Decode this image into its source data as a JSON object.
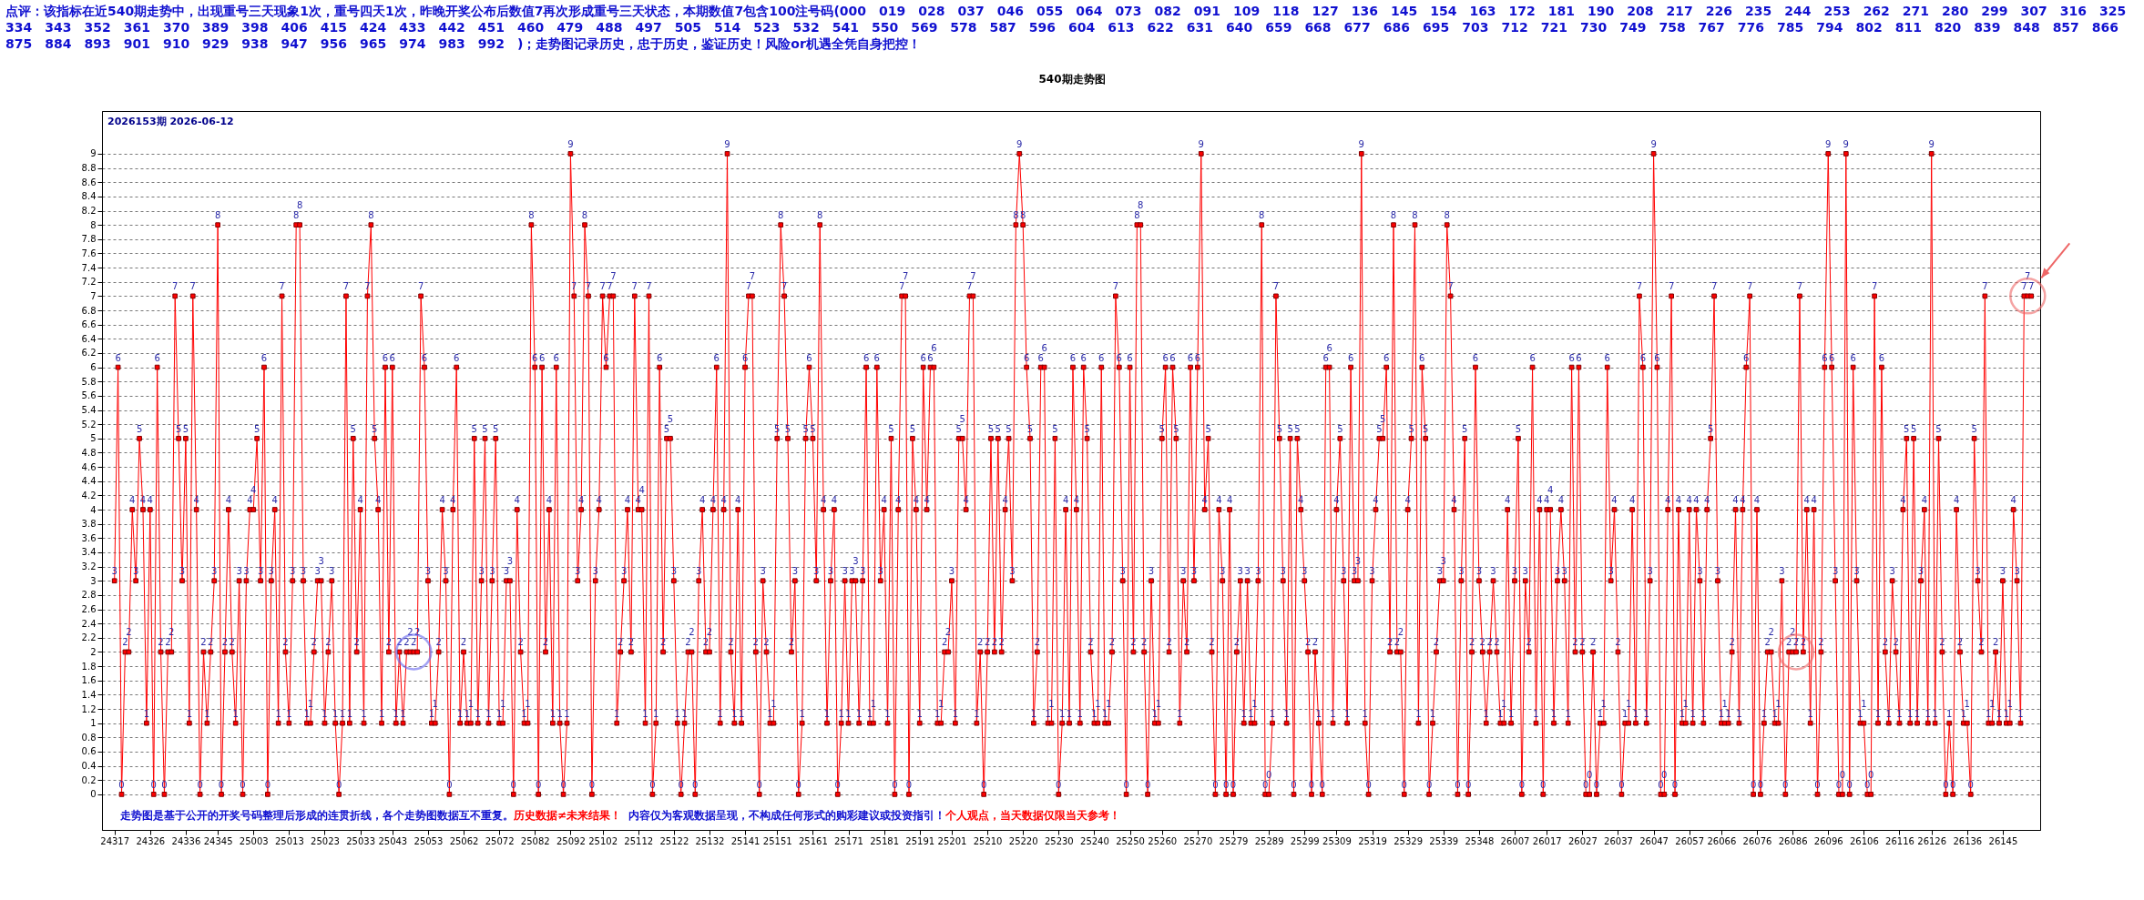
{
  "chart_data": {
    "type": "line",
    "title": "540期走势图",
    "subtitle": "2026153期  2026-06-12",
    "annotations": [
      "点评：该指标在近540期走势中，出现重号三天现象1次，重号四天1次，昨晚开奖公布后数值7再次形成重号三天状态，本期数值7包含100注号码(000　019　028　037　046　055　064　073　082　091　109　118　127　136　145　154　163　172　181　190　208　217　226　235　244　253　262　271　280　299　307　316　325　334　343　352　361　370　389　398　406　415　424　433　442　451　460　479　488　497　505　514　523　532　541　550　569　578　587　596　604　613　622　631　640　659　668　677　686　695　703　712　721　730　749　758　767　776　785　794　802　811　820　839　848　857　866　875　884　893　901　910　929　938　947　956　965　974　983　992　)；走势图记录历史，忠于历史，鉴证历史！风险or机遇全凭自身把控！",
      "走势图是基于公开的开奖号码整理后形成的连贯折线，各个走势图数据互不重复。",
      "历史数据≠未来结果！",
      "内容仅为客观数据呈现，不构成任何形式的购彩建议或投资指引！",
      "个人观点，当天数据仅限当天参考！"
    ],
    "categories": [
      "24317",
      null,
      null,
      null,
      null,
      null,
      null,
      null,
      null,
      null,
      "24326",
      null,
      null,
      null,
      null,
      null,
      null,
      null,
      null,
      null,
      "24336",
      null,
      null,
      null,
      null,
      null,
      null,
      null,
      null,
      "24345",
      null,
      null,
      null,
      null,
      null,
      null,
      null,
      null,
      null,
      "25003",
      null,
      null,
      null,
      null,
      null,
      null,
      null,
      null,
      null,
      "25013",
      null,
      null,
      null,
      null,
      null,
      null,
      null,
      null,
      null,
      "25023",
      null,
      null,
      null,
      null,
      null,
      null,
      null,
      null,
      null,
      "25033",
      null,
      null,
      null,
      null,
      null,
      null,
      null,
      null,
      "25043",
      null,
      null,
      null,
      null,
      null,
      null,
      null,
      null,
      null,
      "25053",
      null,
      null,
      null,
      null,
      null,
      null,
      null,
      null,
      null,
      "25062",
      null,
      null,
      null,
      null,
      null,
      null,
      null,
      null,
      null,
      "25072",
      null,
      null,
      null,
      null,
      null,
      null,
      null,
      null,
      null,
      "25082",
      null,
      null,
      null,
      null,
      null,
      null,
      null,
      null,
      null,
      "25092",
      null,
      null,
      null,
      null,
      null,
      null,
      null,
      null,
      "25102",
      null,
      null,
      null,
      null,
      null,
      null,
      null,
      null,
      null,
      "25112",
      null,
      null,
      null,
      null,
      null,
      null,
      null,
      null,
      null,
      "25122",
      null,
      null,
      null,
      null,
      null,
      null,
      null,
      null,
      null,
      "25132",
      null,
      null,
      null,
      null,
      null,
      null,
      null,
      null,
      null,
      "25141",
      null,
      null,
      null,
      null,
      null,
      null,
      null,
      null,
      "25151",
      null,
      null,
      null,
      null,
      null,
      null,
      null,
      null,
      null,
      "25161",
      null,
      null,
      null,
      null,
      null,
      null,
      null,
      null,
      null,
      "25171",
      null,
      null,
      null,
      null,
      null,
      null,
      null,
      null,
      null,
      "25181",
      null,
      null,
      null,
      null,
      null,
      null,
      null,
      null,
      null,
      "25191",
      null,
      null,
      null,
      null,
      null,
      null,
      null,
      null,
      "25201",
      null,
      null,
      null,
      null,
      null,
      null,
      null,
      null,
      null,
      "25210",
      null,
      null,
      null,
      null,
      null,
      null,
      null,
      null,
      null,
      "25220",
      null,
      null,
      null,
      null,
      null,
      null,
      null,
      null,
      null,
      "25230",
      null,
      null,
      null,
      null,
      null,
      null,
      null,
      null,
      null,
      "25240",
      null,
      null,
      null,
      null,
      null,
      null,
      null,
      null,
      null,
      "25250",
      null,
      null,
      null,
      null,
      null,
      null,
      null,
      null,
      "25260",
      null,
      null,
      null,
      null,
      null,
      null,
      null,
      null,
      null,
      "25270",
      null,
      null,
      null,
      null,
      null,
      null,
      null,
      null,
      null,
      "25279",
      null,
      null,
      null,
      null,
      null,
      null,
      null,
      null,
      null,
      "25289",
      null,
      null,
      null,
      null,
      null,
      null,
      null,
      null,
      null,
      "25299",
      null,
      null,
      null,
      null,
      null,
      null,
      null,
      null,
      "25309",
      null,
      null,
      null,
      null,
      null,
      null,
      null,
      null,
      null,
      "25319",
      null,
      null,
      null,
      null,
      null,
      null,
      null,
      null,
      null,
      "25329",
      null,
      null,
      null,
      null,
      null,
      null,
      null,
      null,
      null,
      "25339",
      null,
      null,
      null,
      null,
      null,
      null,
      null,
      null,
      null,
      "25348",
      null,
      null,
      null,
      null,
      null,
      null,
      null,
      null,
      null,
      "26007",
      null,
      null,
      null,
      null,
      null,
      null,
      null,
      null,
      "26017",
      null,
      null,
      null,
      null,
      null,
      null,
      null,
      null,
      null,
      "26027",
      null,
      null,
      null,
      null,
      null,
      null,
      null,
      null,
      null,
      "26037",
      null,
      null,
      null,
      null,
      null,
      null,
      null,
      null,
      null,
      "26047",
      null,
      null,
      null,
      null,
      null,
      null,
      null,
      null,
      null,
      "26057",
      null,
      null,
      null,
      null,
      null,
      null,
      null,
      null,
      "26066",
      null,
      null,
      null,
      null,
      null,
      null,
      null,
      null,
      null,
      "26076",
      null,
      null,
      null,
      null,
      null,
      null,
      null,
      null,
      null,
      "26086",
      null,
      null,
      null,
      null,
      null,
      null,
      null,
      null,
      null,
      "26096",
      null,
      null,
      null,
      null,
      null,
      null,
      null,
      null,
      null,
      "26106",
      null,
      null,
      null,
      null,
      null,
      null,
      null,
      null,
      null,
      "26116",
      null,
      null,
      null,
      null,
      null,
      null,
      null,
      null,
      "26126",
      null,
      null,
      null,
      null,
      null,
      null,
      null,
      null,
      null,
      "26136",
      null,
      null,
      null,
      null,
      null,
      null,
      null,
      null,
      null,
      "26145",
      null,
      null,
      null,
      null,
      null,
      null,
      null,
      null
    ],
    "values": [
      3,
      6,
      0,
      2,
      2,
      4,
      3,
      5,
      4,
      1,
      4,
      0,
      6,
      2,
      0,
      2,
      2,
      7,
      5,
      3,
      5,
      1,
      7,
      4,
      0,
      2,
      1,
      2,
      3,
      8,
      0,
      2,
      4,
      2,
      1,
      3,
      0,
      3,
      4,
      4,
      5,
      3,
      6,
      0,
      3,
      4,
      1,
      7,
      2,
      1,
      3,
      8,
      8,
      3,
      1,
      1,
      2,
      3,
      3,
      1,
      2,
      3,
      1,
      0,
      1,
      7,
      1,
      5,
      2,
      4,
      1,
      7,
      8,
      5,
      4,
      1,
      6,
      2,
      6,
      1,
      2,
      1,
      2,
      2,
      2,
      2,
      7,
      6,
      3,
      1,
      1,
      2,
      4,
      3,
      0,
      4,
      6,
      1,
      2,
      1,
      1,
      5,
      1,
      3,
      5,
      1,
      3,
      5,
      1,
      1,
      3,
      3,
      0,
      4,
      2,
      1,
      1,
      8,
      6,
      0,
      6,
      2,
      4,
      1,
      6,
      1,
      0,
      1,
      9,
      7,
      3,
      4,
      8,
      7,
      0,
      3,
      4,
      7,
      6,
      7,
      7,
      1,
      2,
      3,
      4,
      2,
      7,
      4,
      4,
      1,
      7,
      0,
      1,
      6,
      2,
      5,
      5,
      3,
      1,
      0,
      1,
      2,
      2,
      0,
      3,
      4,
      2,
      2,
      4,
      6,
      1,
      4,
      9,
      2,
      1,
      4,
      1,
      6,
      7,
      7,
      2,
      0,
      3,
      2,
      1,
      1,
      5,
      8,
      7,
      5,
      2,
      3,
      0,
      1,
      5,
      6,
      5,
      3,
      8,
      4,
      1,
      3,
      4,
      0,
      1,
      3,
      1,
      3,
      3,
      1,
      3,
      6,
      1,
      1,
      6,
      3,
      4,
      1,
      5,
      0,
      4,
      7,
      7,
      0,
      5,
      4,
      1,
      6,
      4,
      6,
      6,
      1,
      1,
      2,
      2,
      3,
      1,
      5,
      5,
      4,
      7,
      7,
      1,
      2,
      0,
      2,
      5,
      2,
      5,
      2,
      4,
      5,
      3,
      8,
      9,
      8,
      6,
      5,
      1,
      2,
      6,
      6,
      1,
      1,
      5,
      0,
      1,
      4,
      1,
      6,
      4,
      1,
      6,
      5,
      2,
      1,
      1,
      6,
      1,
      1,
      2,
      7,
      6,
      3,
      0,
      6,
      2,
      8,
      8,
      2,
      0,
      3,
      1,
      1,
      5,
      6,
      2,
      6,
      5,
      1,
      3,
      2,
      6,
      3,
      6,
      9,
      4,
      5,
      2,
      0,
      4,
      3,
      0,
      4,
      0,
      2,
      3,
      1,
      3,
      1,
      1,
      3,
      8,
      0,
      0,
      1,
      7,
      5,
      3,
      1,
      5,
      0,
      5,
      4,
      3,
      2,
      0,
      2,
      1,
      0,
      6,
      6,
      1,
      4,
      5,
      3,
      1,
      6,
      3,
      3,
      9,
      1,
      0,
      3,
      4,
      5,
      5,
      6,
      2,
      8,
      2,
      2,
      0,
      4,
      5,
      8,
      1,
      6,
      5,
      0,
      1,
      2,
      3,
      3,
      8,
      7,
      4,
      0,
      3,
      5,
      0,
      2,
      6,
      3,
      2,
      1,
      2,
      3,
      2,
      1,
      1,
      4,
      1,
      3,
      5,
      0,
      3,
      2,
      6,
      1,
      4,
      0,
      4,
      4,
      1,
      3,
      4,
      3,
      1,
      6,
      2,
      6,
      2,
      0,
      0,
      2,
      0,
      1,
      1,
      6,
      3,
      4,
      2,
      0,
      1,
      1,
      4,
      1,
      7,
      6,
      1,
      3,
      9,
      6,
      0,
      0,
      4,
      7,
      0,
      4,
      1,
      1,
      4,
      1,
      4,
      3,
      1,
      4,
      5,
      7,
      3,
      1,
      1,
      1,
      2,
      4,
      1,
      4,
      6,
      7,
      0,
      4,
      0,
      1,
      2,
      2,
      1,
      1,
      3,
      0,
      2,
      2,
      2,
      7,
      2,
      4,
      1,
      4,
      0,
      2,
      6,
      9,
      6,
      3,
      0,
      0,
      9,
      0,
      6,
      3,
      1,
      1,
      0,
      0,
      7,
      1,
      6,
      2,
      1,
      3,
      2,
      1,
      4,
      5,
      1,
      5,
      1,
      3,
      4,
      1,
      9,
      1,
      5,
      2,
      0,
      1,
      0,
      4,
      2,
      1,
      1,
      0,
      5,
      3,
      2,
      7,
      1,
      1,
      2,
      1,
      3,
      1,
      1,
      4,
      3,
      1,
      7,
      7,
      7
    ],
    "color": "#ff0000",
    "marker": "square",
    "line_style": "solid",
    "data_labels": true,
    "grid": "y",
    "ylim": [
      -0.5,
      9.6
    ],
    "yticks": [
      0,
      0.2,
      0.4,
      0.6,
      0.8,
      1,
      1.2,
      1.4,
      1.6,
      1.8,
      2,
      2.2,
      2.4,
      2.6,
      2.8,
      3,
      3.2,
      3.4,
      3.6,
      3.8,
      4,
      4.2,
      4.4,
      4.6,
      4.8,
      5,
      5.2,
      5.4,
      5.6,
      5.8,
      6,
      6.2,
      6.4,
      6.6,
      6.8,
      7,
      7.2,
      7.4,
      7.6,
      7.8,
      8,
      8.2,
      8.4,
      8.6,
      8.8,
      9
    ]
  }
}
